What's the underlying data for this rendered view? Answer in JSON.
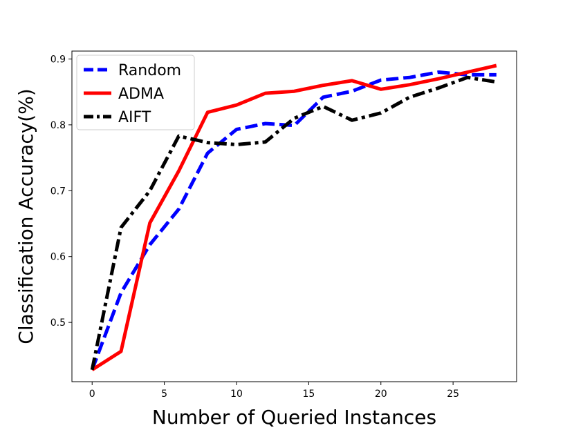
{
  "chart_data": {
    "type": "line",
    "title": "",
    "xlabel": "Number of Queried Instances",
    "ylabel": "Classification Accuracy(%)",
    "xlim": [
      -1.4,
      29.4
    ],
    "ylim": [
      0.41,
      0.912
    ],
    "xticks": [
      0,
      5,
      10,
      15,
      20,
      25
    ],
    "yticks": [
      0.5,
      0.6,
      0.7,
      0.8,
      0.9
    ],
    "xtick_labels": [
      "0",
      "5",
      "10",
      "15",
      "20",
      "25"
    ],
    "ytick_labels": [
      "0.5",
      "0.6",
      "0.7",
      "0.8",
      "0.9"
    ],
    "grid": false,
    "legend_position": "top-left",
    "series": [
      {
        "name": "Random",
        "color": "#0000ff",
        "style": "dashed",
        "x": [
          0,
          2,
          4,
          6,
          8,
          10,
          12,
          14,
          16,
          18,
          20,
          22,
          24,
          26,
          28
        ],
        "y": [
          0.428,
          0.545,
          0.618,
          0.672,
          0.757,
          0.793,
          0.802,
          0.799,
          0.842,
          0.851,
          0.868,
          0.872,
          0.88,
          0.876,
          0.876
        ]
      },
      {
        "name": "ADMA",
        "color": "#ff0000",
        "style": "solid",
        "x": [
          0,
          2,
          4,
          6,
          8,
          10,
          12,
          14,
          16,
          18,
          20,
          22,
          24,
          26,
          28
        ],
        "y": [
          0.428,
          0.456,
          0.651,
          0.73,
          0.819,
          0.83,
          0.848,
          0.851,
          0.86,
          0.867,
          0.854,
          0.861,
          0.87,
          0.88,
          0.89
        ]
      },
      {
        "name": "AIFT",
        "color": "#000000",
        "style": "dashdot",
        "x": [
          0,
          2,
          4,
          6,
          8,
          10,
          12,
          14,
          16,
          18,
          20,
          22,
          24,
          26,
          28
        ],
        "y": [
          0.428,
          0.644,
          0.7,
          0.783,
          0.773,
          0.77,
          0.774,
          0.81,
          0.828,
          0.807,
          0.818,
          0.842,
          0.856,
          0.872,
          0.865
        ]
      }
    ]
  }
}
